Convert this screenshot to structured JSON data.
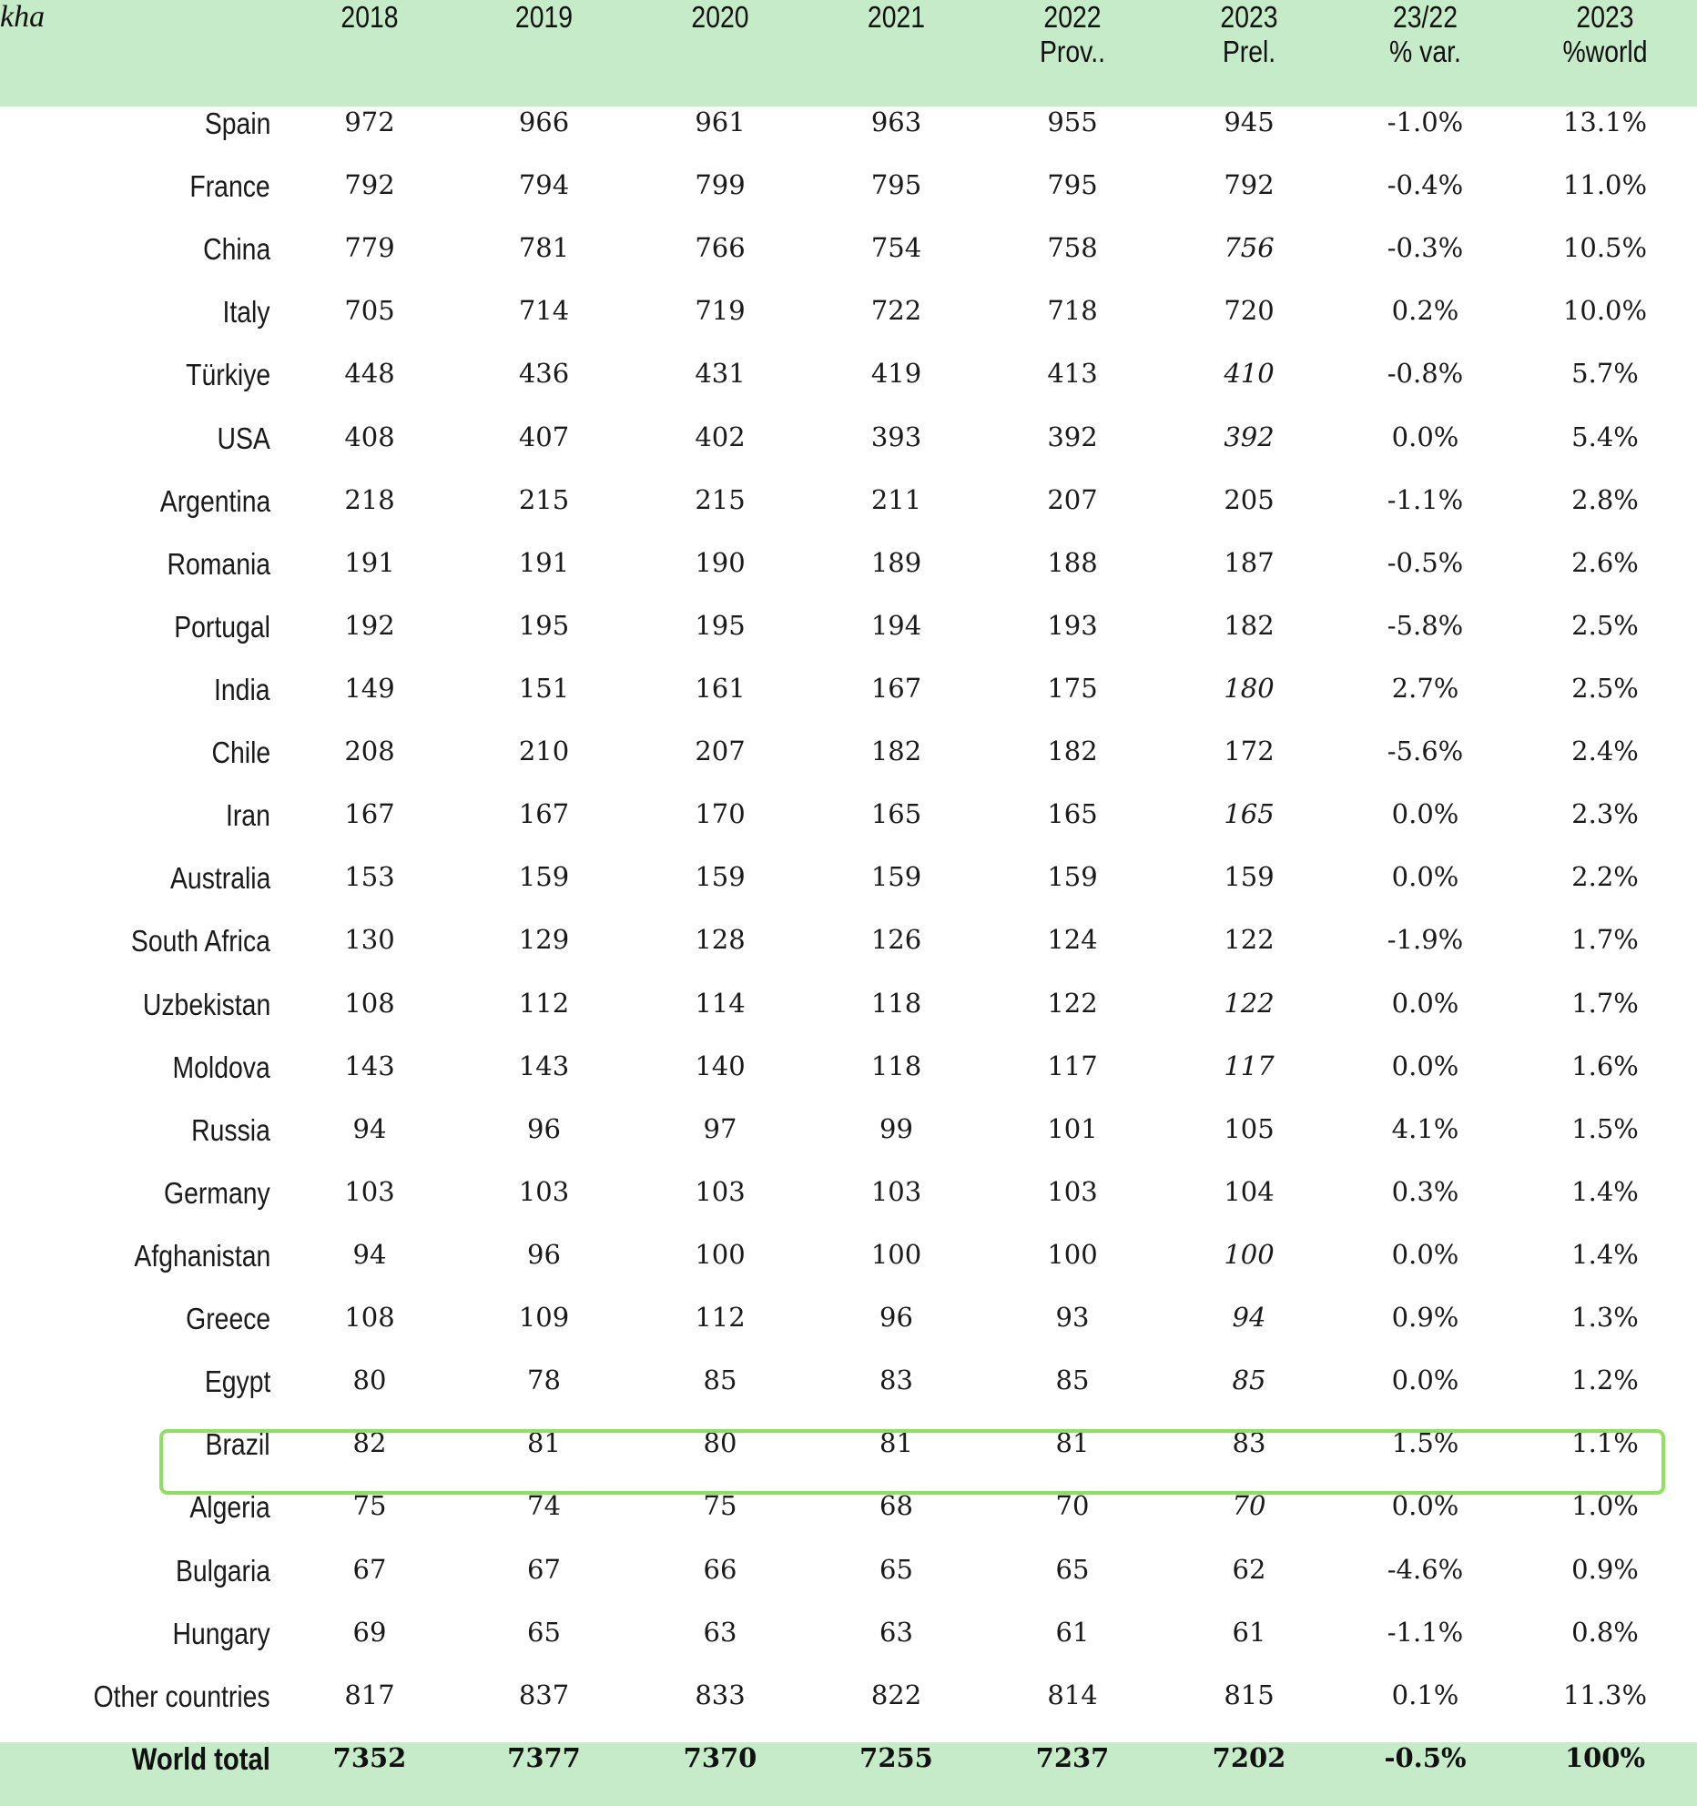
{
  "chart_data": {
    "type": "table",
    "unit_label": "kha",
    "columns": [
      {
        "line1": "2018",
        "line2": ""
      },
      {
        "line1": "2019",
        "line2": ""
      },
      {
        "line1": "2020",
        "line2": ""
      },
      {
        "line1": "2021",
        "line2": ""
      },
      {
        "line1": "2022",
        "line2": "Prov.."
      },
      {
        "line1": "2023",
        "line2": "Prel."
      },
      {
        "line1": "23/22",
        "line2": "% var."
      },
      {
        "line1": "2023",
        "line2": "%world"
      }
    ],
    "rows": [
      {
        "country": "Spain",
        "values": [
          "972",
          "966",
          "961",
          "963",
          "955",
          "945",
          "-1.0%",
          "13.1%"
        ],
        "estimated_2023": false
      },
      {
        "country": "France",
        "values": [
          "792",
          "794",
          "799",
          "795",
          "795",
          "792",
          "-0.4%",
          "11.0%"
        ],
        "estimated_2023": false
      },
      {
        "country": "China",
        "values": [
          "779",
          "781",
          "766",
          "754",
          "758",
          "756",
          "-0.3%",
          "10.5%"
        ],
        "estimated_2023": true
      },
      {
        "country": "Italy",
        "values": [
          "705",
          "714",
          "719",
          "722",
          "718",
          "720",
          "0.2%",
          "10.0%"
        ],
        "estimated_2023": false
      },
      {
        "country": "Türkiye",
        "values": [
          "448",
          "436",
          "431",
          "419",
          "413",
          "410",
          "-0.8%",
          "5.7%"
        ],
        "estimated_2023": true
      },
      {
        "country": "USA",
        "values": [
          "408",
          "407",
          "402",
          "393",
          "392",
          "392",
          "0.0%",
          "5.4%"
        ],
        "estimated_2023": true
      },
      {
        "country": "Argentina",
        "values": [
          "218",
          "215",
          "215",
          "211",
          "207",
          "205",
          "-1.1%",
          "2.8%"
        ],
        "estimated_2023": false
      },
      {
        "country": "Romania",
        "values": [
          "191",
          "191",
          "190",
          "189",
          "188",
          "187",
          "-0.5%",
          "2.6%"
        ],
        "estimated_2023": false
      },
      {
        "country": "Portugal",
        "values": [
          "192",
          "195",
          "195",
          "194",
          "193",
          "182",
          "-5.8%",
          "2.5%"
        ],
        "estimated_2023": false
      },
      {
        "country": "India",
        "values": [
          "149",
          "151",
          "161",
          "167",
          "175",
          "180",
          "2.7%",
          "2.5%"
        ],
        "estimated_2023": true
      },
      {
        "country": "Chile",
        "values": [
          "208",
          "210",
          "207",
          "182",
          "182",
          "172",
          "-5.6%",
          "2.4%"
        ],
        "estimated_2023": false
      },
      {
        "country": "Iran",
        "values": [
          "167",
          "167",
          "170",
          "165",
          "165",
          "165",
          "0.0%",
          "2.3%"
        ],
        "estimated_2023": true
      },
      {
        "country": "Australia",
        "values": [
          "153",
          "159",
          "159",
          "159",
          "159",
          "159",
          "0.0%",
          "2.2%"
        ],
        "estimated_2023": false
      },
      {
        "country": "South Africa",
        "values": [
          "130",
          "129",
          "128",
          "126",
          "124",
          "122",
          "-1.9%",
          "1.7%"
        ],
        "estimated_2023": false
      },
      {
        "country": "Uzbekistan",
        "values": [
          "108",
          "112",
          "114",
          "118",
          "122",
          "122",
          "0.0%",
          "1.7%"
        ],
        "estimated_2023": true
      },
      {
        "country": "Moldova",
        "values": [
          "143",
          "143",
          "140",
          "118",
          "117",
          "117",
          "0.0%",
          "1.6%"
        ],
        "estimated_2023": true
      },
      {
        "country": "Russia",
        "values": [
          "94",
          "96",
          "97",
          "99",
          "101",
          "105",
          "4.1%",
          "1.5%"
        ],
        "estimated_2023": false
      },
      {
        "country": "Germany",
        "values": [
          "103",
          "103",
          "103",
          "103",
          "103",
          "104",
          "0.3%",
          "1.4%"
        ],
        "estimated_2023": false
      },
      {
        "country": "Afghanistan",
        "values": [
          "94",
          "96",
          "100",
          "100",
          "100",
          "100",
          "0.0%",
          "1.4%"
        ],
        "estimated_2023": true
      },
      {
        "country": "Greece",
        "values": [
          "108",
          "109",
          "112",
          "96",
          "93",
          "94",
          "0.9%",
          "1.3%"
        ],
        "estimated_2023": true
      },
      {
        "country": "Egypt",
        "values": [
          "80",
          "78",
          "85",
          "83",
          "85",
          "85",
          "0.0%",
          "1.2%"
        ],
        "estimated_2023": true
      },
      {
        "country": "Brazil",
        "values": [
          "82",
          "81",
          "80",
          "81",
          "81",
          "83",
          "1.5%",
          "1.1%"
        ],
        "estimated_2023": false,
        "highlighted": true
      },
      {
        "country": "Algeria",
        "values": [
          "75",
          "74",
          "75",
          "68",
          "70",
          "70",
          "0.0%",
          "1.0%"
        ],
        "estimated_2023": true
      },
      {
        "country": "Bulgaria",
        "values": [
          "67",
          "67",
          "66",
          "65",
          "65",
          "62",
          "-4.6%",
          "0.9%"
        ],
        "estimated_2023": false
      },
      {
        "country": "Hungary",
        "values": [
          "69",
          "65",
          "63",
          "63",
          "61",
          "61",
          "-1.1%",
          "0.8%"
        ],
        "estimated_2023": false
      },
      {
        "country": "Other countries",
        "values": [
          "817",
          "837",
          "833",
          "822",
          "814",
          "815",
          "0.1%",
          "11.3%"
        ],
        "estimated_2023": false
      }
    ],
    "total": {
      "country": "World total",
      "values": [
        "7352",
        "7377",
        "7370",
        "7255",
        "7237",
        "7202",
        "-0.5%",
        "100%"
      ]
    },
    "colors": {
      "header_bg": "#c6ebc8",
      "highlight_border": "#8fe060"
    }
  }
}
